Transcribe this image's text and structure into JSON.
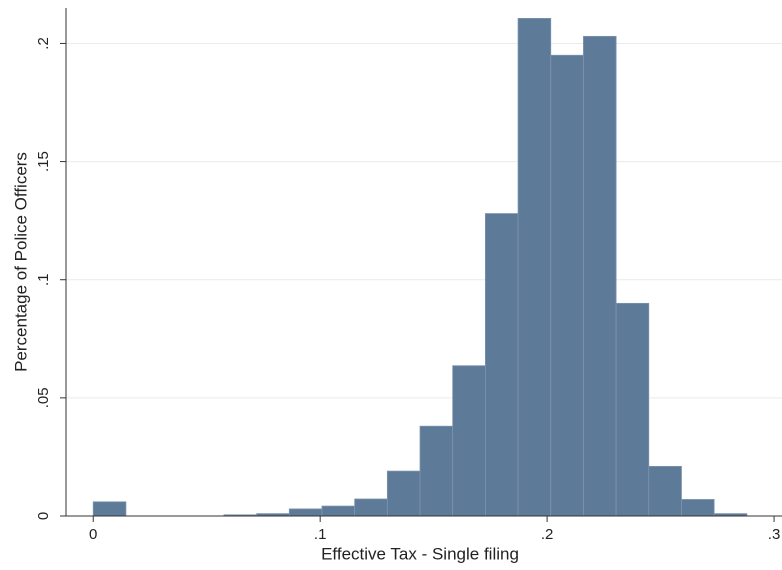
{
  "chart_data": {
    "type": "histogram",
    "x_label": "Effective Tax - Single filing",
    "y_label": "Percentage of Police Officers",
    "bins": [
      0,
      0.0144,
      0.0288,
      0.0432,
      0.0576,
      0.072,
      0.0864,
      0.1008,
      0.1152,
      0.1296,
      0.144,
      0.1584,
      0.1728,
      0.1872,
      0.2016,
      0.216,
      0.2304,
      0.2448,
      0.2592,
      0.2736,
      0.288
    ],
    "values": [
      0.006,
      0,
      0,
      0,
      0.0005,
      0.001,
      0.003,
      0.0042,
      0.0072,
      0.019,
      0.038,
      0.0636,
      0.128,
      0.2106,
      0.195,
      0.203,
      0.09,
      0.021,
      0.007,
      0.001
    ],
    "color": "#5e7a99",
    "xlim": [
      -0.012,
      0.3035
    ],
    "ylim": [
      0,
      0.215
    ],
    "xticks": [
      0,
      {
        "value": 0.1,
        "label": ".1"
      },
      {
        "value": 0.2,
        "label": ".2"
      },
      {
        "value": 0.3,
        "label": ".3"
      }
    ],
    "yticks": [
      0,
      {
        "value": 0.05,
        "label": ".05"
      },
      {
        "value": 0.1,
        "label": ".1"
      },
      {
        "value": 0.15,
        "label": ".15"
      },
      {
        "value": 0.2,
        "label": ".2"
      }
    ],
    "grid": true
  }
}
